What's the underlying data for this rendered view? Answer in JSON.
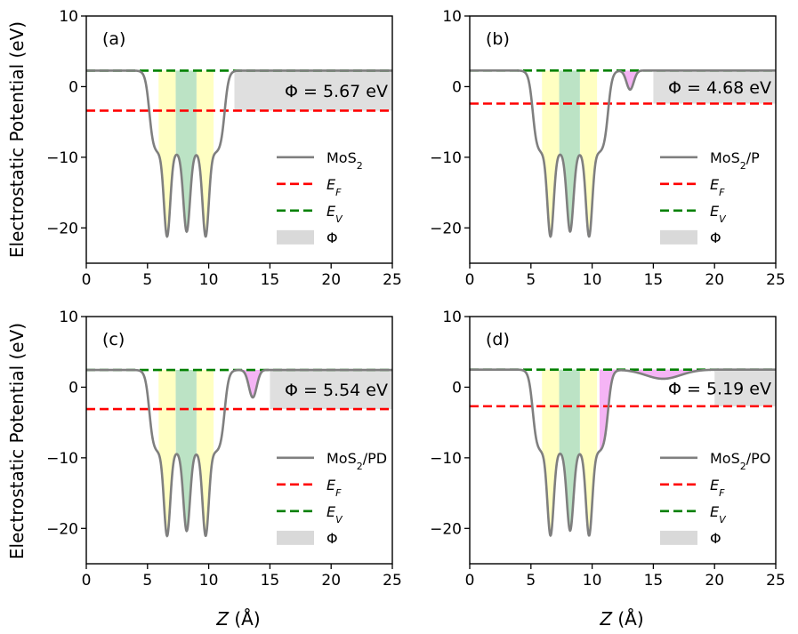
{
  "chart_data": [
    {
      "type": "line",
      "panel_label": "(a)",
      "species": "MoS2",
      "series": [
        {
          "name": "MoS$_2$",
          "role": "potential",
          "color": "#7f7f7f",
          "description": "planar-averaged electrostatic potential"
        },
        {
          "name": "$E_F$",
          "role": "fermi",
          "value": -3.4,
          "color": "#ff0000"
        },
        {
          "name": "$E_V$",
          "role": "vacuum",
          "value": 2.27,
          "color": "#008000"
        }
      ],
      "phi_label": "Φ",
      "phi_annotation": "Φ = 5.67 eV",
      "work_function_eV": 5.67,
      "phi_band_x": [
        12.1,
        25
      ],
      "adsorbate_dip": null,
      "xlim": [
        0,
        25
      ],
      "ylim": [
        -25,
        10
      ],
      "xticks": [
        0,
        5,
        10,
        15,
        20,
        25
      ],
      "yticks": [
        -20,
        -10,
        0,
        10
      ]
    },
    {
      "type": "line",
      "panel_label": "(b)",
      "species": "MoS2/P",
      "series": [
        {
          "name": "MoS$_2$/P",
          "role": "potential",
          "color": "#7f7f7f"
        },
        {
          "name": "$E_F$",
          "role": "fermi",
          "value": -2.4,
          "color": "#ff0000"
        },
        {
          "name": "$E_V$",
          "role": "vacuum",
          "value": 2.28,
          "color": "#008000"
        }
      ],
      "phi_label": "Φ",
      "phi_annotation": "Φ = 4.68 eV",
      "work_function_eV": 4.68,
      "phi_band_x": [
        15.0,
        25
      ],
      "adsorbate_dip": {
        "center": 13.1,
        "depth": 2.7,
        "width": 0.42
      },
      "xlim": [
        0,
        25
      ],
      "ylim": [
        -25,
        10
      ],
      "xticks": [
        0,
        5,
        10,
        15,
        20,
        25
      ],
      "yticks": [
        -20,
        -10,
        0,
        10
      ]
    },
    {
      "type": "line",
      "panel_label": "(c)",
      "species": "MoS2/PD",
      "series": [
        {
          "name": "MoS$_2$/PD",
          "role": "potential",
          "color": "#7f7f7f"
        },
        {
          "name": "$E_F$",
          "role": "fermi",
          "value": -3.1,
          "color": "#ff0000"
        },
        {
          "name": "$E_V$",
          "role": "vacuum",
          "value": 2.44,
          "color": "#008000"
        }
      ],
      "phi_label": "Φ",
      "phi_annotation": "Φ = 5.54 eV",
      "work_function_eV": 5.54,
      "phi_band_x": [
        15.0,
        25
      ],
      "adsorbate_dip": {
        "center": 13.6,
        "depth": 3.9,
        "width": 0.45
      },
      "xlim": [
        0,
        25
      ],
      "ylim": [
        -25,
        10
      ],
      "xticks": [
        0,
        5,
        10,
        15,
        20,
        25
      ],
      "yticks": [
        -20,
        -10,
        0,
        10
      ]
    },
    {
      "type": "line",
      "panel_label": "(d)",
      "species": "MoS2/PO",
      "series": [
        {
          "name": "MoS$_2$/PO",
          "role": "potential",
          "color": "#7f7f7f"
        },
        {
          "name": "$E_F$",
          "role": "fermi",
          "value": -2.7,
          "color": "#ff0000"
        },
        {
          "name": "$E_V$",
          "role": "vacuum",
          "value": 2.49,
          "color": "#008000"
        }
      ],
      "phi_label": "Φ",
      "phi_annotation": "Φ = 5.19 eV",
      "work_function_eV": 5.19,
      "phi_band_x": [
        20.0,
        25
      ],
      "adsorbate_dip": {
        "center": 15.8,
        "depth": 1.3,
        "width": 2.0
      },
      "xlim": [
        0,
        25
      ],
      "ylim": [
        -25,
        10
      ],
      "xticks": [
        0,
        5,
        10,
        15,
        20,
        25
      ],
      "yticks": [
        -20,
        -10,
        0,
        10
      ]
    }
  ],
  "axes": {
    "ylabel": "Electrostatic Potential (eV)",
    "xlabel_symbol": "Z",
    "xlabel_unit": " (Å)"
  },
  "layers": {
    "mo_region": [
      7.3,
      9.0
    ],
    "s_region": [
      5.9,
      10.4
    ],
    "mo_color": "#8fd19e",
    "s_color": "#ffff99",
    "dip_color": "#ee82ee",
    "phi_color": "#d9d9d9"
  }
}
